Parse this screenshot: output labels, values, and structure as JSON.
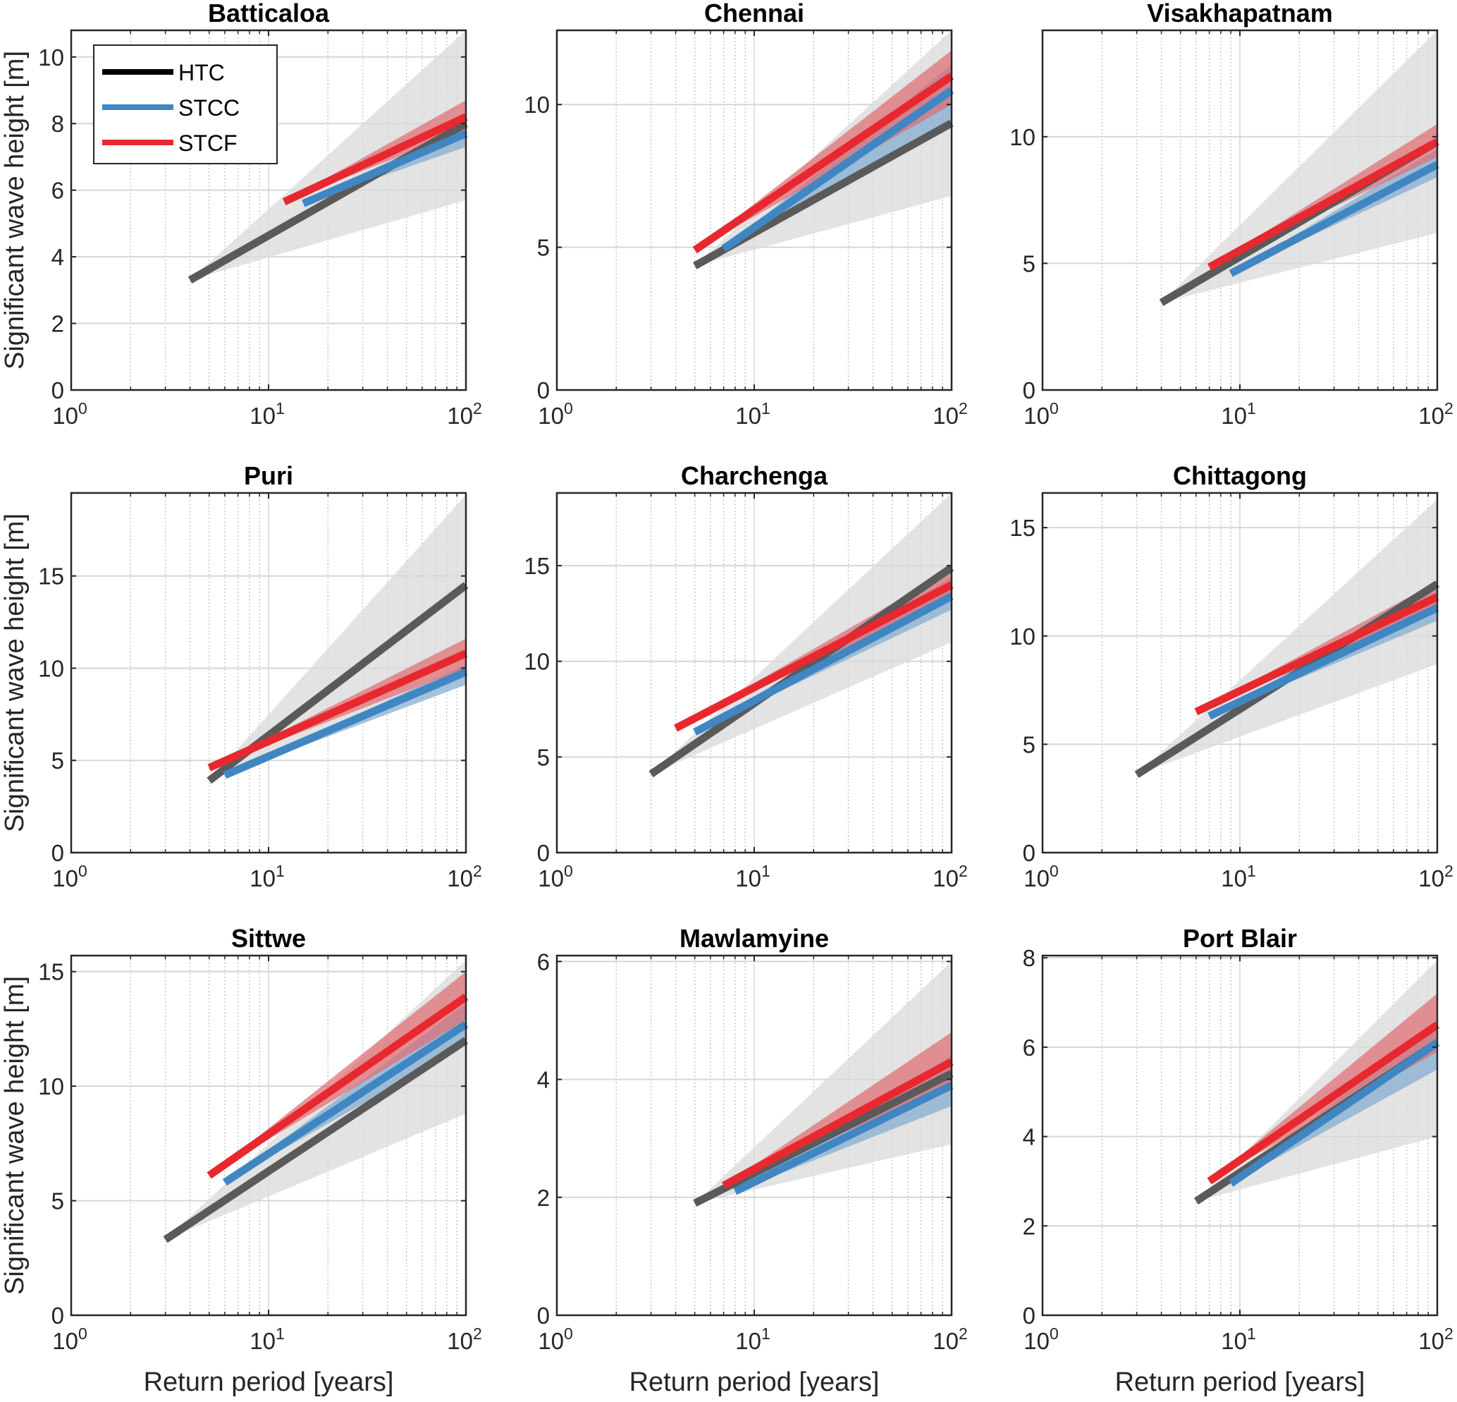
{
  "figure": {
    "xlabel": "Return period [years]",
    "ylabel": "Significant wave height [m]",
    "legend": {
      "placement": "top-left of first panel",
      "entries": [
        {
          "name": "HTC",
          "color": "#000000"
        },
        {
          "name": "STCC",
          "color": "#3b82c4"
        },
        {
          "name": "STCF",
          "color": "#e8262f"
        }
      ]
    }
  },
  "colors": {
    "HTC_line": "#5a5a5a",
    "HTC_band": "#d9d9d9",
    "STCC_line": "#3f86c3",
    "STCC_band": "#7fa9cf",
    "STCF_line": "#e8282f",
    "STCF_band": "#e06a70",
    "grid": "#d6d6d6"
  },
  "chart_data": [
    {
      "type": "line",
      "title": "Batticaloa",
      "xscale": "log",
      "xlim": [
        1,
        100
      ],
      "ylim": [
        0,
        10.8
      ],
      "xticks": [
        "10^0",
        "10^1",
        "10^2"
      ],
      "yticks": [
        0,
        2,
        4,
        6,
        8,
        10
      ],
      "grid": true,
      "series": [
        {
          "name": "HTC",
          "x": [
            4,
            100
          ],
          "y": [
            3.3,
            8.0
          ],
          "band_at_100": [
            5.7,
            10.8
          ]
        },
        {
          "name": "STCC",
          "x": [
            15,
            100
          ],
          "y": [
            5.6,
            7.7
          ],
          "band_at_100": [
            7.3,
            8.0
          ]
        },
        {
          "name": "STCF",
          "x": [
            12,
            100
          ],
          "y": [
            5.65,
            8.2
          ],
          "band_at_100": [
            7.8,
            8.7
          ]
        }
      ]
    },
    {
      "type": "line",
      "title": "Chennai",
      "xscale": "log",
      "xlim": [
        1,
        100
      ],
      "ylim": [
        0,
        12.6
      ],
      "xticks": [
        "10^0",
        "10^1",
        "10^2"
      ],
      "yticks": [
        0,
        5,
        10
      ],
      "grid": true,
      "series": [
        {
          "name": "HTC",
          "x": [
            5,
            100
          ],
          "y": [
            4.35,
            9.35
          ],
          "band_at_100": [
            6.8,
            12.6
          ]
        },
        {
          "name": "STCC",
          "x": [
            7,
            100
          ],
          "y": [
            4.95,
            10.5
          ],
          "band_at_100": [
            9.5,
            11.4
          ]
        },
        {
          "name": "STCF",
          "x": [
            5,
            100
          ],
          "y": [
            4.9,
            11.0
          ],
          "band_at_100": [
            10.0,
            11.9
          ]
        }
      ]
    },
    {
      "type": "line",
      "title": "Visakhapatnam",
      "xscale": "log",
      "xlim": [
        1,
        100
      ],
      "ylim": [
        0,
        14.2
      ],
      "xticks": [
        "10^0",
        "10^1",
        "10^2"
      ],
      "yticks": [
        0,
        5,
        10
      ],
      "grid": true,
      "series": [
        {
          "name": "HTC",
          "x": [
            4,
            100
          ],
          "y": [
            3.45,
            9.8
          ],
          "band_at_100": [
            6.2,
            14.2
          ]
        },
        {
          "name": "STCC",
          "x": [
            9,
            100
          ],
          "y": [
            4.6,
            8.9
          ],
          "band_at_100": [
            8.4,
            9.5
          ]
        },
        {
          "name": "STCF",
          "x": [
            7,
            100
          ],
          "y": [
            4.85,
            9.8
          ],
          "band_at_100": [
            9.2,
            10.5
          ]
        }
      ]
    },
    {
      "type": "line",
      "title": "Puri",
      "xscale": "log",
      "xlim": [
        1,
        100
      ],
      "ylim": [
        0,
        19.5
      ],
      "xticks": [
        "10^0",
        "10^1",
        "10^2"
      ],
      "yticks": [
        0,
        5,
        10,
        15
      ],
      "grid": true,
      "series": [
        {
          "name": "HTC",
          "x": [
            5,
            100
          ],
          "y": [
            3.9,
            14.5
          ],
          "band_at_100": [
            9.5,
            19.4
          ]
        },
        {
          "name": "STCC",
          "x": [
            6,
            100
          ],
          "y": [
            4.2,
            9.8
          ],
          "band_at_100": [
            9.1,
            10.2
          ]
        },
        {
          "name": "STCF",
          "x": [
            5,
            100
          ],
          "y": [
            4.6,
            10.8
          ],
          "band_at_100": [
            10.0,
            11.6
          ]
        }
      ]
    },
    {
      "type": "line",
      "title": "Charchenga",
      "xscale": "log",
      "xlim": [
        1,
        100
      ],
      "ylim": [
        0,
        18.8
      ],
      "xticks": [
        "10^0",
        "10^1",
        "10^2"
      ],
      "yticks": [
        0,
        5,
        10,
        15
      ],
      "grid": true,
      "series": [
        {
          "name": "HTC",
          "x": [
            3,
            100
          ],
          "y": [
            4.1,
            14.9
          ],
          "band_at_100": [
            11.0,
            18.8
          ]
        },
        {
          "name": "STCC",
          "x": [
            5,
            100
          ],
          "y": [
            6.3,
            13.4
          ],
          "band_at_100": [
            12.7,
            14.4
          ]
        },
        {
          "name": "STCF",
          "x": [
            4,
            100
          ],
          "y": [
            6.5,
            14.0
          ],
          "band_at_100": [
            13.3,
            14.8
          ]
        }
      ]
    },
    {
      "type": "line",
      "title": "Chittagong",
      "xscale": "log",
      "xlim": [
        1,
        100
      ],
      "ylim": [
        0,
        16.6
      ],
      "xticks": [
        "10^0",
        "10^1",
        "10^2"
      ],
      "yticks": [
        0,
        5,
        10,
        15
      ],
      "grid": true,
      "series": [
        {
          "name": "HTC",
          "x": [
            3,
            100
          ],
          "y": [
            3.6,
            12.4
          ],
          "band_at_100": [
            8.7,
            16.3
          ]
        },
        {
          "name": "STCC",
          "x": [
            7,
            100
          ],
          "y": [
            6.3,
            11.3
          ],
          "band_at_100": [
            10.7,
            12.1
          ]
        },
        {
          "name": "STCF",
          "x": [
            6,
            100
          ],
          "y": [
            6.5,
            11.8
          ],
          "band_at_100": [
            11.2,
            12.5
          ]
        }
      ]
    },
    {
      "type": "line",
      "title": "Sittwe",
      "xscale": "log",
      "xlim": [
        1,
        100
      ],
      "ylim": [
        0,
        15.7
      ],
      "xticks": [
        "10^0",
        "10^1",
        "10^2"
      ],
      "yticks": [
        0,
        5,
        10,
        15
      ],
      "grid": true,
      "series": [
        {
          "name": "HTC",
          "x": [
            3,
            100
          ],
          "y": [
            3.3,
            12.0
          ],
          "band_at_100": [
            8.8,
            15.5
          ]
        },
        {
          "name": "STCC",
          "x": [
            6,
            100
          ],
          "y": [
            5.8,
            12.7
          ],
          "band_at_100": [
            11.8,
            13.6
          ]
        },
        {
          "name": "STCF",
          "x": [
            5,
            100
          ],
          "y": [
            6.1,
            13.9
          ],
          "band_at_100": [
            12.9,
            15.0
          ]
        }
      ]
    },
    {
      "type": "line",
      "title": "Mawlamyine",
      "xscale": "log",
      "xlim": [
        1,
        100
      ],
      "ylim": [
        0,
        6.1
      ],
      "xticks": [
        "10^0",
        "10^1",
        "10^2"
      ],
      "yticks": [
        0,
        2,
        4,
        6
      ],
      "grid": true,
      "series": [
        {
          "name": "HTC",
          "x": [
            5,
            100
          ],
          "y": [
            1.9,
            4.1
          ],
          "band_at_100": [
            2.9,
            6.0
          ]
        },
        {
          "name": "STCC",
          "x": [
            8,
            100
          ],
          "y": [
            2.1,
            3.9
          ],
          "band_at_100": [
            3.55,
            4.4
          ]
        },
        {
          "name": "STCF",
          "x": [
            7,
            100
          ],
          "y": [
            2.2,
            4.3
          ],
          "band_at_100": [
            3.9,
            4.8
          ]
        }
      ]
    },
    {
      "type": "line",
      "title": "Port Blair",
      "xscale": "log",
      "xlim": [
        1,
        100
      ],
      "ylim": [
        0,
        8.05
      ],
      "xticks": [
        "10^0",
        "10^1",
        "10^2"
      ],
      "yticks": [
        0,
        2,
        4,
        6,
        8
      ],
      "grid": true,
      "series": [
        {
          "name": "HTC",
          "x": [
            6,
            100
          ],
          "y": [
            2.55,
            6.1
          ],
          "band_at_100": [
            4.0,
            7.95
          ]
        },
        {
          "name": "STCC",
          "x": [
            9,
            100
          ],
          "y": [
            2.95,
            6.1
          ],
          "band_at_100": [
            5.5,
            6.6
          ]
        },
        {
          "name": "STCF",
          "x": [
            7,
            100
          ],
          "y": [
            3.0,
            6.5
          ],
          "band_at_100": [
            5.9,
            7.2
          ]
        }
      ]
    }
  ]
}
